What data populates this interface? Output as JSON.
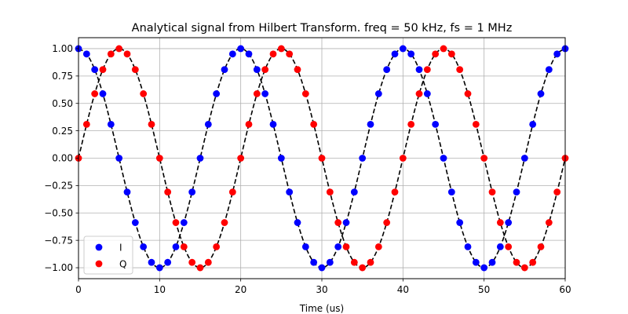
{
  "chart_data": {
    "type": "scatter",
    "title": "Analytical signal from Hilbert Transform. freq = 50 kHz, fs = 1 MHz",
    "xlabel": "Time (us)",
    "ylabel": "",
    "xlim": [
      0,
      60
    ],
    "ylim": [
      -1.1,
      1.1
    ],
    "xticks": [
      0,
      10,
      20,
      30,
      40,
      50,
      60
    ],
    "xtick_labels": [
      "0",
      "10",
      "20",
      "30",
      "40",
      "50",
      "60"
    ],
    "yticks": [
      -1.0,
      -0.75,
      -0.5,
      -0.25,
      0.0,
      0.25,
      0.5,
      0.75,
      1.0
    ],
    "ytick_labels": [
      "−1.00",
      "−0.75",
      "−0.50",
      "−0.25",
      "0.00",
      "0.25",
      "0.50",
      "0.75",
      "1.00"
    ],
    "grid": true,
    "legend_placement": "lower-left",
    "series": [
      {
        "name": "I",
        "color": "#0000ff",
        "marker": "circle",
        "x": [
          0,
          1,
          2,
          3,
          4,
          5,
          6,
          7,
          8,
          9,
          10,
          11,
          12,
          13,
          14,
          15,
          16,
          17,
          18,
          19,
          20,
          21,
          22,
          23,
          24,
          25,
          26,
          27,
          28,
          29,
          30,
          31,
          32,
          33,
          34,
          35,
          36,
          37,
          38,
          39,
          40,
          41,
          42,
          43,
          44,
          45,
          46,
          47,
          48,
          49,
          50,
          51,
          52,
          53,
          54,
          55,
          56,
          57,
          58,
          59,
          60
        ],
        "y": [
          1.0,
          0.951,
          0.809,
          0.588,
          0.309,
          0.0,
          -0.309,
          -0.588,
          -0.809,
          -0.951,
          -1.0,
          -0.951,
          -0.809,
          -0.588,
          -0.309,
          0.0,
          0.309,
          0.588,
          0.809,
          0.951,
          1.0,
          0.951,
          0.809,
          0.588,
          0.309,
          0.0,
          -0.309,
          -0.588,
          -0.809,
          -0.951,
          -1.0,
          -0.951,
          -0.809,
          -0.588,
          -0.309,
          0.0,
          0.309,
          0.588,
          0.809,
          0.951,
          1.0,
          0.951,
          0.809,
          0.588,
          0.309,
          0.0,
          -0.309,
          -0.588,
          -0.809,
          -0.951,
          -1.0,
          -0.951,
          -0.809,
          -0.588,
          -0.309,
          0.0,
          0.309,
          0.588,
          0.809,
          0.951,
          1.0
        ]
      },
      {
        "name": "Q",
        "color": "#ff0000",
        "marker": "circle",
        "x": [
          0,
          1,
          2,
          3,
          4,
          5,
          6,
          7,
          8,
          9,
          10,
          11,
          12,
          13,
          14,
          15,
          16,
          17,
          18,
          19,
          20,
          21,
          22,
          23,
          24,
          25,
          26,
          27,
          28,
          29,
          30,
          31,
          32,
          33,
          34,
          35,
          36,
          37,
          38,
          39,
          40,
          41,
          42,
          43,
          44,
          45,
          46,
          47,
          48,
          49,
          50,
          51,
          52,
          53,
          54,
          55,
          56,
          57,
          58,
          59,
          60
        ],
        "y": [
          0.0,
          0.309,
          0.588,
          0.809,
          0.951,
          1.0,
          0.951,
          0.809,
          0.588,
          0.309,
          0.0,
          -0.309,
          -0.588,
          -0.809,
          -0.951,
          -1.0,
          -0.951,
          -0.809,
          -0.588,
          -0.309,
          0.0,
          0.309,
          0.588,
          0.809,
          0.951,
          1.0,
          0.951,
          0.809,
          0.588,
          0.309,
          0.0,
          -0.309,
          -0.588,
          -0.809,
          -0.951,
          -1.0,
          -0.951,
          -0.809,
          -0.588,
          -0.309,
          0.0,
          0.309,
          0.588,
          0.809,
          0.951,
          1.0,
          0.951,
          0.809,
          0.588,
          0.309,
          0.0,
          -0.309,
          -0.588,
          -0.809,
          -0.951,
          -1.0,
          -0.951,
          -0.809,
          -0.588,
          -0.309,
          0.0
        ]
      }
    ],
    "reference_line": {
      "style": "dashed",
      "color": "#000000"
    }
  }
}
